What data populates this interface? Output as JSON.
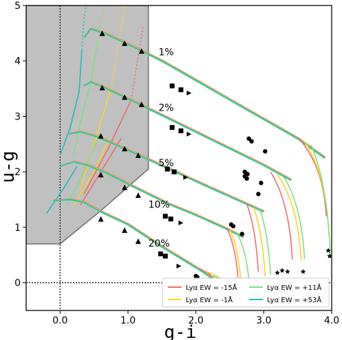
{
  "chart_data": {
    "type": "line",
    "xlabel": "g-i",
    "ylabel": "u-g",
    "xlim": [
      -0.5,
      4.0
    ],
    "ylim": [
      -0.5,
      5.0
    ],
    "xticks": [
      {
        "value": 0.0,
        "label": "0.0"
      },
      {
        "value": 1.0,
        "label": "1.0"
      },
      {
        "value": 2.0,
        "label": "2.0"
      },
      {
        "value": 3.0,
        "label": "3.0"
      },
      {
        "value": 4.0,
        "label": "4.0"
      }
    ],
    "yticks": [
      {
        "value": 0,
        "label": "0"
      },
      {
        "value": 1,
        "label": "1"
      },
      {
        "value": 2,
        "label": "2"
      },
      {
        "value": 3,
        "label": "3"
      },
      {
        "value": 4,
        "label": "4"
      },
      {
        "value": 5,
        "label": "5"
      }
    ],
    "grid": false,
    "reference_lines": {
      "x": 0,
      "y": 0,
      "style": "dotted"
    },
    "shaded_region": {
      "color": "#c0c0c0",
      "edge_color": "#707070",
      "vertices": [
        [
          -0.5,
          0.7
        ],
        [
          0.0,
          0.7
        ],
        [
          0.6,
          1.3
        ],
        [
          1.3,
          2.05
        ],
        [
          1.3,
          5.0
        ],
        [
          -0.5,
          5.0
        ]
      ]
    },
    "legend": {
      "placement": "bottom-right",
      "entries": [
        {
          "label": "Lyα EW = -15Å",
          "color": "#f26b6b"
        },
        {
          "label": "Lyα EW = +11Å",
          "color": "#7ee07e"
        },
        {
          "label": "Lyα EW = -1Å",
          "color": "#ffd21f"
        },
        {
          "label": "Lyα EW = +53Å",
          "color": "#1fbfbf"
        }
      ]
    },
    "track_labels": [
      {
        "text": "1%",
        "x": 1.45,
        "y": 4.1
      },
      {
        "text": "2%",
        "x": 1.45,
        "y": 3.1
      },
      {
        "text": "5%",
        "x": 1.45,
        "y": 2.1
      },
      {
        "text": "10%",
        "x": 1.3,
        "y": 1.35
      },
      {
        "text": "20%",
        "x": 1.3,
        "y": 0.65
      }
    ],
    "tracks": [
      {
        "label": "1%",
        "main": [
          [
            0.35,
            4.42
          ],
          [
            0.45,
            4.58
          ],
          [
            0.65,
            4.5
          ],
          [
            1.0,
            4.3
          ],
          [
            1.5,
            4.0
          ],
          [
            2.0,
            3.65
          ],
          [
            2.5,
            3.3
          ],
          [
            3.0,
            2.95
          ],
          [
            3.5,
            2.6
          ],
          [
            3.9,
            2.25
          ]
        ],
        "tails": [
          [
            3.5,
            2.62,
            3.92,
            1.2
          ],
          [
            3.6,
            2.55,
            3.96,
            0.85
          ],
          [
            3.7,
            2.48,
            3.98,
            0.48
          ]
        ],
        "triangles": [
          [
            0.62,
            4.5
          ],
          [
            0.95,
            4.32
          ],
          [
            1.2,
            4.18
          ]
        ],
        "squares": [
          [
            1.65,
            3.55
          ],
          [
            1.78,
            3.48
          ]
        ],
        "arrows": [
          [
            1.9,
            3.42
          ]
        ],
        "circles": [
          [
            2.78,
            2.6
          ],
          [
            2.82,
            2.55
          ],
          [
            3.02,
            2.37
          ]
        ],
        "stars": [
          [
            3.95,
            0.58
          ],
          [
            3.97,
            0.48
          ]
        ]
      },
      {
        "label": "2%",
        "main": [
          [
            0.35,
            3.55
          ],
          [
            0.45,
            3.62
          ],
          [
            0.65,
            3.52
          ],
          [
            1.0,
            3.32
          ],
          [
            1.5,
            3.02
          ],
          [
            2.0,
            2.72
          ],
          [
            2.5,
            2.42
          ],
          [
            3.0,
            2.12
          ],
          [
            3.4,
            1.85
          ]
        ],
        "tails": [
          [
            3.1,
            2.0,
            3.42,
            0.42
          ],
          [
            3.2,
            1.95,
            3.55,
            0.4
          ],
          [
            3.3,
            1.9,
            3.6,
            0.42
          ]
        ],
        "triangles": [
          [
            0.62,
            3.52
          ],
          [
            0.95,
            3.35
          ],
          [
            1.2,
            3.22
          ]
        ],
        "squares": [
          [
            1.65,
            2.8
          ],
          [
            1.78,
            2.74
          ]
        ],
        "arrows": [
          [
            1.9,
            2.68
          ]
        ],
        "circles": [
          [
            2.72,
            2.0
          ],
          [
            2.76,
            1.96
          ],
          [
            2.96,
            1.8
          ]
        ],
        "stars": [
          [
            3.2,
            0.18
          ],
          [
            3.27,
            0.22
          ],
          [
            3.35,
            0.2
          ],
          [
            3.58,
            0.2
          ]
        ]
      },
      {
        "label": "5%",
        "main": [
          [
            0.1,
            2.68
          ],
          [
            0.3,
            2.72
          ],
          [
            0.5,
            2.65
          ],
          [
            0.8,
            2.5
          ],
          [
            1.2,
            2.28
          ],
          [
            1.7,
            2.0
          ],
          [
            2.2,
            1.72
          ],
          [
            2.6,
            1.5
          ],
          [
            3.0,
            1.28
          ]
        ],
        "tails": [
          [
            2.75,
            1.42,
            2.92,
            0.2
          ],
          [
            2.85,
            1.36,
            3.02,
            0.12
          ],
          [
            2.95,
            1.3,
            3.1,
            0.15
          ]
        ],
        "triangles": [
          [
            0.6,
            2.65
          ],
          [
            0.95,
            2.42
          ],
          [
            1.15,
            2.3
          ]
        ],
        "squares": [
          [
            1.58,
            2.05
          ],
          [
            1.68,
            2.0
          ]
        ],
        "arrows": [
          [
            1.85,
            1.9
          ]
        ],
        "circles": [
          [
            2.72,
            1.92
          ],
          [
            2.75,
            1.88
          ],
          [
            2.92,
            1.6
          ]
        ],
        "stars": [
          [
            2.67,
            0.02
          ],
          [
            2.7,
            0.03
          ],
          [
            2.98,
            0.02
          ]
        ]
      },
      {
        "label": "10%",
        "main": [
          [
            0.0,
            2.1
          ],
          [
            0.2,
            2.18
          ],
          [
            0.4,
            2.12
          ],
          [
            0.7,
            1.97
          ],
          [
            1.1,
            1.72
          ],
          [
            1.6,
            1.42
          ],
          [
            2.0,
            1.22
          ],
          [
            2.4,
            1.0
          ],
          [
            2.7,
            0.82
          ]
        ],
        "tails": [
          [
            2.45,
            1.0,
            2.62,
            0.1
          ],
          [
            2.5,
            0.96,
            2.66,
            0.05
          ],
          [
            2.6,
            0.9,
            2.78,
            0.05
          ]
        ],
        "triangles": [
          [
            0.6,
            1.95
          ],
          [
            0.95,
            1.72
          ],
          [
            1.15,
            1.58
          ]
        ],
        "squares": [
          [
            1.55,
            1.2
          ],
          [
            1.63,
            1.15
          ]
        ],
        "arrows": [
          [
            1.78,
            1.08
          ]
        ],
        "circles": [
          [
            2.52,
            1.05
          ],
          [
            2.55,
            1.02
          ],
          [
            2.68,
            0.88
          ]
        ],
        "stars": [
          [
            2.6,
            0.05
          ],
          [
            2.65,
            0.05
          ],
          [
            2.75,
            0.05
          ]
        ]
      },
      {
        "label": "20%",
        "main": [
          [
            -0.1,
            1.48
          ],
          [
            0.15,
            1.5
          ],
          [
            0.35,
            1.45
          ],
          [
            0.6,
            1.28
          ],
          [
            1.0,
            1.05
          ],
          [
            1.5,
            0.65
          ],
          [
            1.9,
            0.35
          ],
          [
            2.1,
            0.2
          ],
          [
            2.3,
            0.02
          ]
        ],
        "tails": [
          [
            2.05,
            0.25,
            2.32,
            -0.05
          ],
          [
            2.15,
            0.2,
            2.42,
            -0.05
          ],
          [
            2.25,
            0.12,
            2.5,
            -0.05
          ]
        ],
        "triangles": [
          [
            0.6,
            1.15
          ],
          [
            0.95,
            0.95
          ],
          [
            1.15,
            0.75
          ]
        ],
        "squares": [
          [
            1.48,
            0.52
          ],
          [
            1.55,
            0.48
          ]
        ],
        "arrows": [
          [
            1.75,
            0.3
          ]
        ],
        "circles": [
          [
            2.0,
            0.12
          ],
          [
            2.02,
            0.1
          ]
        ],
        "stars": [
          [
            1.92,
            -0.03
          ],
          [
            1.98,
            -0.03
          ],
          [
            2.05,
            -0.03
          ],
          [
            2.35,
            0.0
          ]
        ]
      }
    ],
    "diverging_lines": [
      {
        "color": "#1fbfbf",
        "dotted": true,
        "points": [
          [
            0.32,
            4.2
          ],
          [
            0.34,
            4.6
          ],
          [
            0.38,
            5.0
          ]
        ]
      },
      {
        "color": "#1fbfbf",
        "dotted": false,
        "points": [
          [
            0.0,
            2.3
          ],
          [
            0.15,
            2.8
          ],
          [
            0.28,
            3.45
          ],
          [
            0.32,
            4.2
          ]
        ]
      },
      {
        "color": "#7ee07e",
        "dotted": true,
        "points": [
          [
            0.55,
            4.35
          ],
          [
            0.6,
            4.7
          ],
          [
            0.66,
            5.0
          ]
        ]
      },
      {
        "color": "#7ee07e",
        "dotted": false,
        "points": [
          [
            0.2,
            2.3
          ],
          [
            0.3,
            2.9
          ],
          [
            0.45,
            3.6
          ],
          [
            0.55,
            4.35
          ]
        ]
      },
      {
        "color": "#ffd21f",
        "dotted": true,
        "points": [
          [
            0.75,
            3.5
          ],
          [
            0.85,
            4.2
          ],
          [
            0.95,
            5.0
          ]
        ]
      },
      {
        "color": "#ffd21f",
        "dotted": false,
        "points": [
          [
            0.3,
            1.7
          ],
          [
            0.5,
            2.5
          ],
          [
            0.75,
            3.5
          ]
        ]
      },
      {
        "color": "#f26b6b",
        "dotted": true,
        "points": [
          [
            1.05,
            3.3
          ],
          [
            1.15,
            4.1
          ],
          [
            1.22,
            4.6
          ]
        ]
      },
      {
        "color": "#f26b6b",
        "dotted": false,
        "points": [
          [
            0.35,
            1.6
          ],
          [
            0.7,
            2.4
          ],
          [
            1.05,
            3.3
          ]
        ]
      },
      {
        "color": "#f26b6b",
        "dotted": false,
        "points": [
          [
            0.3,
            1.4
          ],
          [
            0.6,
            2.0
          ],
          [
            0.9,
            2.6
          ]
        ]
      },
      {
        "color": "#ffd21f",
        "dotted": false,
        "points": [
          [
            0.2,
            1.4
          ],
          [
            0.5,
            2.0
          ],
          [
            0.72,
            2.6
          ]
        ]
      },
      {
        "color": "#7ee07e",
        "dotted": false,
        "points": [
          [
            0.1,
            1.4
          ],
          [
            0.35,
            2.0
          ],
          [
            0.55,
            2.6
          ]
        ]
      },
      {
        "color": "#1fbfbf",
        "dotted": false,
        "points": [
          [
            -0.2,
            1.25
          ],
          [
            0.05,
            1.7
          ],
          [
            0.25,
            2.1
          ]
        ]
      }
    ]
  }
}
